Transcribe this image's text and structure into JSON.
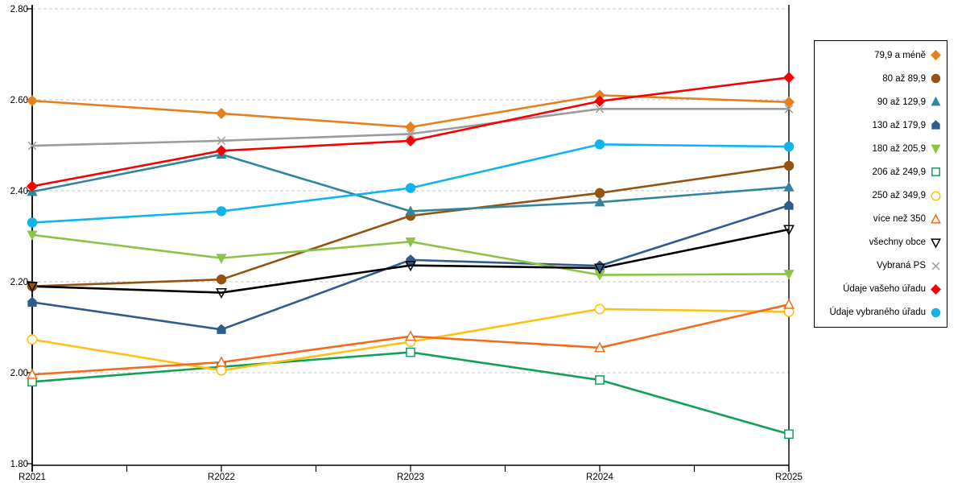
{
  "figure": {
    "background": "#FFFFFF",
    "grid_color": "#C9C9C9",
    "axis_color": "#000000"
  },
  "chart_data": {
    "type": "line",
    "title": "",
    "xlabel": "",
    "ylabel": "",
    "categories": [
      "R2021",
      "R2022",
      "R2023",
      "R2024",
      "R2025"
    ],
    "ylim": [
      1.8,
      2.8
    ],
    "yticks": [
      {
        "value": 2.8,
        "label": "2.80"
      },
      {
        "value": 2.6,
        "label": "2.60"
      },
      {
        "value": 2.4,
        "label": "2.40"
      },
      {
        "value": 2.2,
        "label": "2.20"
      },
      {
        "value": 2.0,
        "label": "2.00"
      },
      {
        "value": 1.8,
        "label": "1.80"
      }
    ],
    "grid": "horizontal-dashed",
    "legend_position": "right",
    "series": [
      {
        "name": "79,9 a méně",
        "marker": "diamond",
        "fill": "solid",
        "color": "#E5801C",
        "values": [
          2.598,
          2.57,
          2.54,
          2.61,
          2.595
        ]
      },
      {
        "name": "80 až 89,9",
        "marker": "circle",
        "fill": "solid",
        "color": "#97520F",
        "values": [
          2.19,
          2.205,
          2.345,
          2.395,
          2.455
        ]
      },
      {
        "name": "90 až 129,9",
        "marker": "triangle-up",
        "fill": "solid",
        "color": "#31859C",
        "values": [
          2.398,
          2.48,
          2.355,
          2.375,
          2.408
        ]
      },
      {
        "name": "130 až 179,9",
        "marker": "pentagon",
        "fill": "solid",
        "color": "#2F5B8F",
        "values": [
          2.155,
          2.095,
          2.248,
          2.235,
          2.368
        ]
      },
      {
        "name": "180 až 205,9",
        "marker": "triangle-down",
        "fill": "solid",
        "color": "#8DC343",
        "values": [
          2.303,
          2.252,
          2.288,
          2.215,
          2.217
        ]
      },
      {
        "name": "206 až 249,9",
        "marker": "square",
        "fill": "open",
        "color": "#12A158",
        "values": [
          1.98,
          2.013,
          2.045,
          1.984,
          1.865
        ]
      },
      {
        "name": "250 až 349,9",
        "marker": "circle",
        "fill": "open",
        "color": "#FFC110",
        "values": [
          2.073,
          2.005,
          2.068,
          2.14,
          2.134
        ]
      },
      {
        "name": "více než 350",
        "marker": "triangle-up",
        "fill": "open",
        "color": "#F66A1D",
        "values": [
          1.996,
          2.023,
          2.08,
          2.055,
          2.15
        ]
      },
      {
        "name": "všechny obce",
        "marker": "triangle-down",
        "fill": "none",
        "color": "#000000",
        "values": [
          2.19,
          2.176,
          2.236,
          2.23,
          2.315
        ]
      },
      {
        "name": "Vybraná PS",
        "marker": "x",
        "fill": "none",
        "color": "#9C9C9C",
        "values": [
          2.499,
          2.51,
          2.525,
          2.58,
          2.58
        ]
      },
      {
        "name": "Údaje vašeho úřadu",
        "marker": "diamond",
        "fill": "solid",
        "color": "#F80000",
        "values": [
          2.41,
          2.488,
          2.51,
          2.597,
          2.649
        ]
      },
      {
        "name": "Údaje vybraného úřadu",
        "marker": "circle",
        "fill": "solid",
        "color": "#10B4EC",
        "values": [
          2.33,
          2.355,
          2.406,
          2.502,
          2.497
        ]
      }
    ]
  }
}
